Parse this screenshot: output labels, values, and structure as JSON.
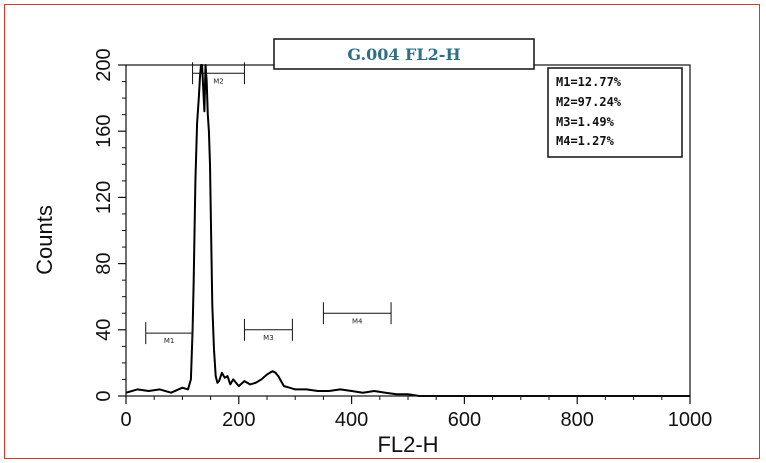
{
  "chart_data": {
    "type": "area",
    "title": "G.004 FL2-H",
    "xlabel": "FL2-H",
    "ylabel": "Counts",
    "xlim": [
      0,
      1000
    ],
    "ylim": [
      0,
      200
    ],
    "x_ticks": [
      0,
      200,
      400,
      600,
      800,
      1000
    ],
    "y_ticks": [
      0,
      40,
      80,
      120,
      160,
      200
    ],
    "grid": false,
    "line_color": "#000000",
    "series": [
      {
        "x": [
          0,
          20,
          40,
          60,
          80,
          100,
          110,
          115,
          118,
          120,
          123,
          126,
          129,
          131,
          133,
          135,
          137,
          139,
          141,
          143,
          145,
          147,
          149,
          151,
          153,
          156,
          159,
          162,
          165,
          170,
          175,
          180,
          185,
          190,
          200,
          210,
          220,
          230,
          240,
          250,
          255,
          260,
          265,
          270,
          275,
          280,
          290,
          300,
          320,
          340,
          360,
          380,
          400,
          420,
          440,
          460,
          480,
          500,
          520,
          540,
          1000
        ],
        "y": [
          2,
          4,
          3,
          4,
          2,
          5,
          4,
          10,
          40,
          70,
          130,
          165,
          180,
          192,
          200,
          200,
          185,
          172,
          200,
          190,
          170,
          160,
          140,
          95,
          55,
          28,
          12,
          8,
          9,
          14,
          11,
          12,
          7,
          10,
          6,
          9,
          7,
          8,
          10,
          13,
          14,
          15,
          14,
          12,
          9,
          6,
          5,
          4,
          4,
          3,
          3,
          4,
          3,
          2,
          3,
          2,
          1,
          1,
          0,
          0,
          0
        ]
      }
    ],
    "markers": [
      {
        "label": "M1",
        "start": 35,
        "end": 118,
        "y": 38
      },
      {
        "label": "M2",
        "start": 118,
        "end": 210,
        "y": 195
      },
      {
        "label": "M3",
        "start": 210,
        "end": 295,
        "y": 40
      },
      {
        "label": "M4",
        "start": 350,
        "end": 470,
        "y": 50
      }
    ],
    "stats": [
      "M1=12.77%",
      "M2=97.24%",
      "M3=1.49%",
      "M4=1.27%"
    ]
  }
}
